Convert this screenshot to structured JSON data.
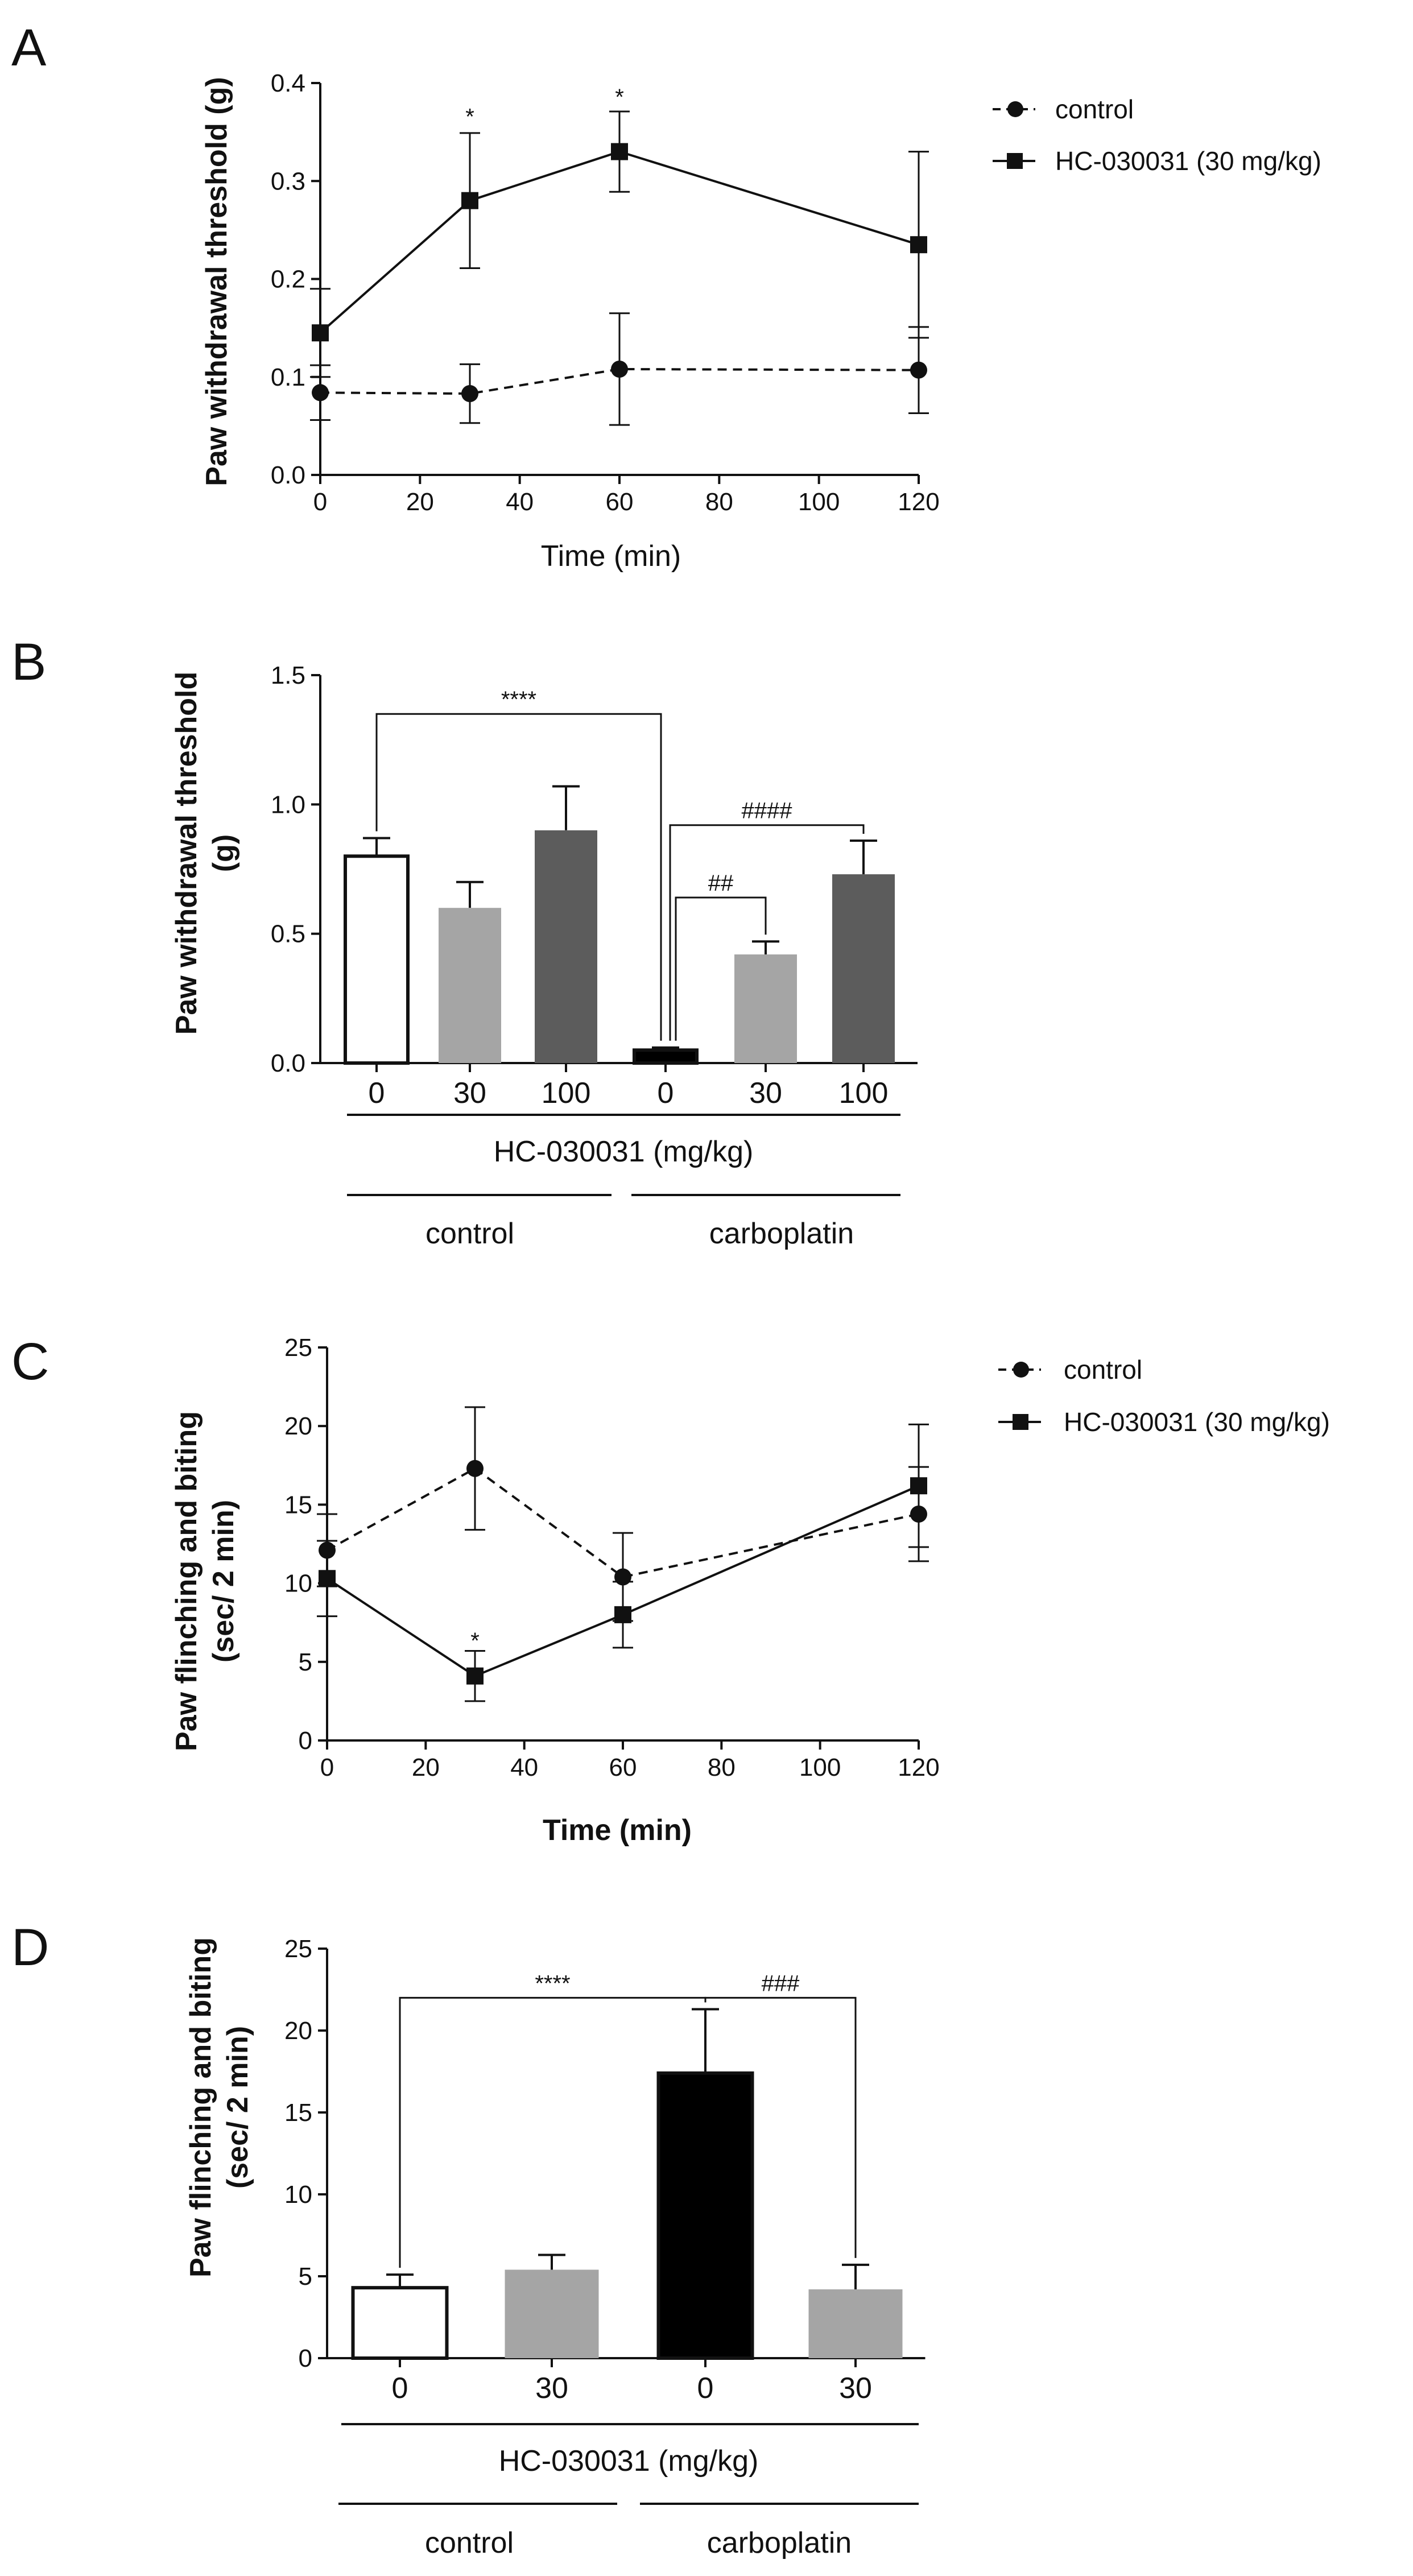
{
  "chart_data": [
    {
      "panel": "A",
      "type": "line",
      "title": "",
      "xlabel": "Time (min)",
      "ylabel": "Paw withdrawal threshold (g)",
      "xlim": [
        0,
        120
      ],
      "ylim": [
        0,
        0.4
      ],
      "xticks": [
        "0",
        "20",
        "40",
        "60",
        "80",
        "100",
        "120"
      ],
      "yticks": [
        "0.0",
        "0.1",
        "0.2",
        "0.3",
        "0.4"
      ],
      "legend": [
        "control",
        "HC-030031 (30 mg/kg)"
      ],
      "series": [
        {
          "name": "control",
          "marker": "circle",
          "dash": true,
          "x": [
            0,
            30,
            60,
            120
          ],
          "y": [
            0.084,
            0.083,
            0.108,
            0.107
          ],
          "err": [
            0.028,
            0.03,
            0.057,
            0.044
          ]
        },
        {
          "name": "HC-030031 (30 mg/kg)",
          "marker": "square",
          "dash": false,
          "x": [
            0,
            30,
            60,
            120
          ],
          "y": [
            0.145,
            0.28,
            0.33,
            0.235
          ],
          "err": [
            0.045,
            0.069,
            0.041,
            0.095
          ]
        }
      ],
      "stars": [
        {
          "x": 30,
          "y": 0.365,
          "text": "*"
        },
        {
          "x": 60,
          "y": 0.385,
          "text": "*"
        }
      ]
    },
    {
      "panel": "B",
      "type": "bar",
      "title": "",
      "xlabel": "HC-030031 (mg/kg)",
      "ylabel": "Paw withdrawal threshold (g)",
      "ylim": [
        0,
        1.5
      ],
      "yticks": [
        "0.0",
        "0.5",
        "1.0",
        "1.5"
      ],
      "categories": [
        "0",
        "30",
        "100",
        "0",
        "30",
        "100"
      ],
      "values": [
        0.8,
        0.6,
        0.9,
        0.05,
        0.42,
        0.73
      ],
      "err": [
        0.07,
        0.1,
        0.17,
        0.01,
        0.05,
        0.13
      ],
      "colors": [
        "#ffffff",
        "#a5a5a5",
        "#5c5c5c",
        "#000000",
        "#a5a5a5",
        "#5c5c5c"
      ],
      "groups": [
        "control",
        "carboplatin"
      ],
      "brackets": [
        {
          "from": 0,
          "to": 3,
          "y": 1.35,
          "text": "****"
        },
        {
          "from": 3,
          "to": 5,
          "y": 0.92,
          "text": "####"
        },
        {
          "from": 3,
          "to": 4,
          "y": 0.64,
          "text": "##"
        }
      ]
    },
    {
      "panel": "C",
      "type": "line",
      "title": "",
      "xlabel": "Time (min)",
      "ylabel": "Paw flinching and biting (sec/ 2 min)",
      "xlim": [
        0,
        120
      ],
      "ylim": [
        0,
        25
      ],
      "xticks": [
        "0",
        "20",
        "40",
        "60",
        "80",
        "100",
        "120"
      ],
      "yticks": [
        "0",
        "5",
        "10",
        "15",
        "20",
        "25"
      ],
      "legend": [
        "control",
        "HC-030031 (30 mg/kg)"
      ],
      "series": [
        {
          "name": "control",
          "marker": "circle",
          "dash": true,
          "x": [
            0,
            30,
            60,
            120
          ],
          "y": [
            12.1,
            17.3,
            10.4,
            14.4
          ],
          "err": [
            2.3,
            3.9,
            2.8,
            3.0
          ]
        },
        {
          "name": "HC-030031 (30 mg/kg)",
          "marker": "square",
          "dash": false,
          "x": [
            0,
            30,
            60,
            120
          ],
          "y": [
            10.3,
            4.1,
            8.0,
            16.2
          ],
          "err": [
            2.4,
            1.6,
            2.1,
            3.9
          ]
        }
      ],
      "stars": [
        {
          "x": 30,
          "y": 6.3,
          "text": "*"
        }
      ]
    },
    {
      "panel": "D",
      "type": "bar",
      "title": "",
      "xlabel": "HC-030031 (mg/kg)",
      "ylabel": "Paw flinching and biting (sec/ 2 min)",
      "ylim": [
        0,
        25
      ],
      "yticks": [
        "0",
        "5",
        "10",
        "15",
        "20",
        "25"
      ],
      "categories": [
        "0",
        "30",
        "0",
        "30"
      ],
      "values": [
        4.3,
        5.4,
        17.4,
        4.2
      ],
      "err": [
        0.8,
        0.9,
        3.9,
        1.5
      ],
      "colors": [
        "#ffffff",
        "#a5a5a5",
        "#000000",
        "#a5a5a5"
      ],
      "groups": [
        "control",
        "carboplatin"
      ],
      "brackets": [
        {
          "from": 0,
          "to": 2,
          "y": 22.0,
          "text": "****"
        },
        {
          "from": 2,
          "to": 3,
          "y": 22.0,
          "text": "###"
        }
      ]
    }
  ]
}
